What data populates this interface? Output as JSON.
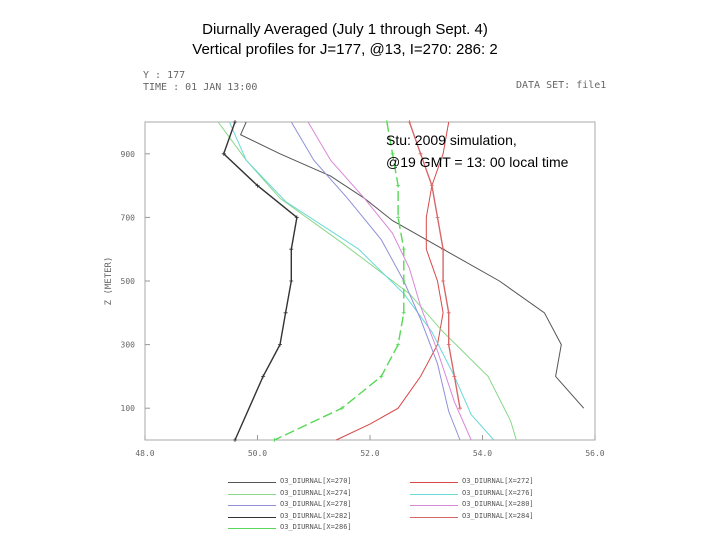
{
  "header": {
    "title_line1": "Diurnally Averaged (July 1 through Sept. 4)",
    "title_line2": "Vertical profiles for J=177, @13, I=270: 286: 2",
    "grads_y": "Y : 177",
    "grads_time": "TIME : 01 JAN 13:00",
    "grads_dataset": "DATA SET: file1"
  },
  "annotation": {
    "line1": "Stu: 2009 simulation,",
    "line2": "@19 GMT = 13: 00 local time"
  },
  "chart_data": {
    "type": "line",
    "title": "",
    "xlabel": "",
    "ylabel": "Z (METER)",
    "xlim": [
      48.0,
      56.0
    ],
    "ylim": [
      0,
      1000
    ],
    "x_ticks": [
      "48.0",
      "50.0",
      "52.0",
      "54.0",
      "56.0"
    ],
    "y_ticks": [
      "100",
      "300",
      "500",
      "700",
      "900"
    ],
    "grid": false,
    "legend": "bottom",
    "series": [
      {
        "name": "O3_DIURNAL[X=270]",
        "color": "#555555",
        "marker": "none",
        "x": [
          49.8,
          49.7,
          50.4,
          51.3,
          51.9,
          52.4,
          53.3,
          54.3,
          55.1,
          55.4,
          55.3,
          55.8
        ],
        "y": [
          1000,
          960,
          900,
          830,
          760,
          690,
          600,
          500,
          400,
          300,
          200,
          100
        ]
      },
      {
        "name": "O3_DIURNAL[X=272]",
        "color": "#d84848",
        "marker": "none",
        "x": [
          53.4,
          53.3,
          53.1,
          53.0,
          53.0,
          53.2,
          53.3,
          53.2,
          52.9,
          52.5,
          52.0,
          51.4
        ],
        "y": [
          1000,
          900,
          800,
          700,
          600,
          500,
          400,
          300,
          200,
          100,
          50,
          0
        ]
      },
      {
        "name": "O3_DIURNAL[X=274]",
        "color": "#88d888",
        "marker": "none",
        "x": [
          49.3,
          49.8,
          50.4,
          51.5,
          52.7,
          53.3,
          54.1,
          54.5,
          54.6
        ],
        "y": [
          1000,
          880,
          760,
          620,
          460,
          340,
          200,
          60,
          0
        ]
      },
      {
        "name": "O3_DIURNAL[X=276]",
        "color": "#6cd8d8",
        "marker": "none",
        "x": [
          49.5,
          49.8,
          50.5,
          51.8,
          52.6,
          53.1,
          53.5,
          53.8,
          54.2
        ],
        "y": [
          1000,
          880,
          750,
          600,
          460,
          340,
          200,
          80,
          0
        ]
      },
      {
        "name": "O3_DIURNAL[X=278]",
        "color": "#9090d8",
        "marker": "none",
        "x": [
          50.6,
          51.0,
          51.6,
          52.2,
          52.6,
          52.9,
          53.2,
          53.4,
          53.6
        ],
        "y": [
          1000,
          880,
          760,
          630,
          500,
          380,
          240,
          90,
          0
        ]
      },
      {
        "name": "O3_DIURNAL[X=280]",
        "color": "#d888d8",
        "marker": "none",
        "x": [
          50.9,
          51.3,
          51.9,
          52.4,
          52.7,
          52.9,
          53.2,
          53.5,
          53.8
        ],
        "y": [
          1000,
          880,
          760,
          650,
          540,
          420,
          280,
          120,
          0
        ]
      },
      {
        "name": "O3_DIURNAL[X=282]",
        "color": "#333333",
        "marker": "plus",
        "x": [
          49.6,
          49.4,
          50.0,
          50.7,
          50.6,
          50.6,
          50.5,
          50.4,
          50.1,
          49.6
        ],
        "y": [
          1000,
          900,
          800,
          700,
          600,
          500,
          400,
          300,
          200,
          0
        ]
      },
      {
        "name": "O3_DIURNAL[X=284]",
        "color": "#d86868",
        "marker": "plus",
        "x": [
          52.7,
          52.9,
          53.1,
          53.2,
          53.3,
          53.3,
          53.4,
          53.4,
          53.5,
          53.6
        ],
        "y": [
          1000,
          900,
          800,
          700,
          600,
          500,
          400,
          300,
          200,
          100
        ]
      },
      {
        "name": "O3_DIURNAL[X=286]",
        "color": "#58d858",
        "marker": "plus",
        "x": [
          52.3,
          52.4,
          52.5,
          52.5,
          52.6,
          52.6,
          52.6,
          52.5,
          52.2,
          51.5,
          50.3
        ],
        "y": [
          1000,
          900,
          800,
          700,
          600,
          500,
          400,
          300,
          200,
          100,
          0
        ]
      }
    ]
  }
}
